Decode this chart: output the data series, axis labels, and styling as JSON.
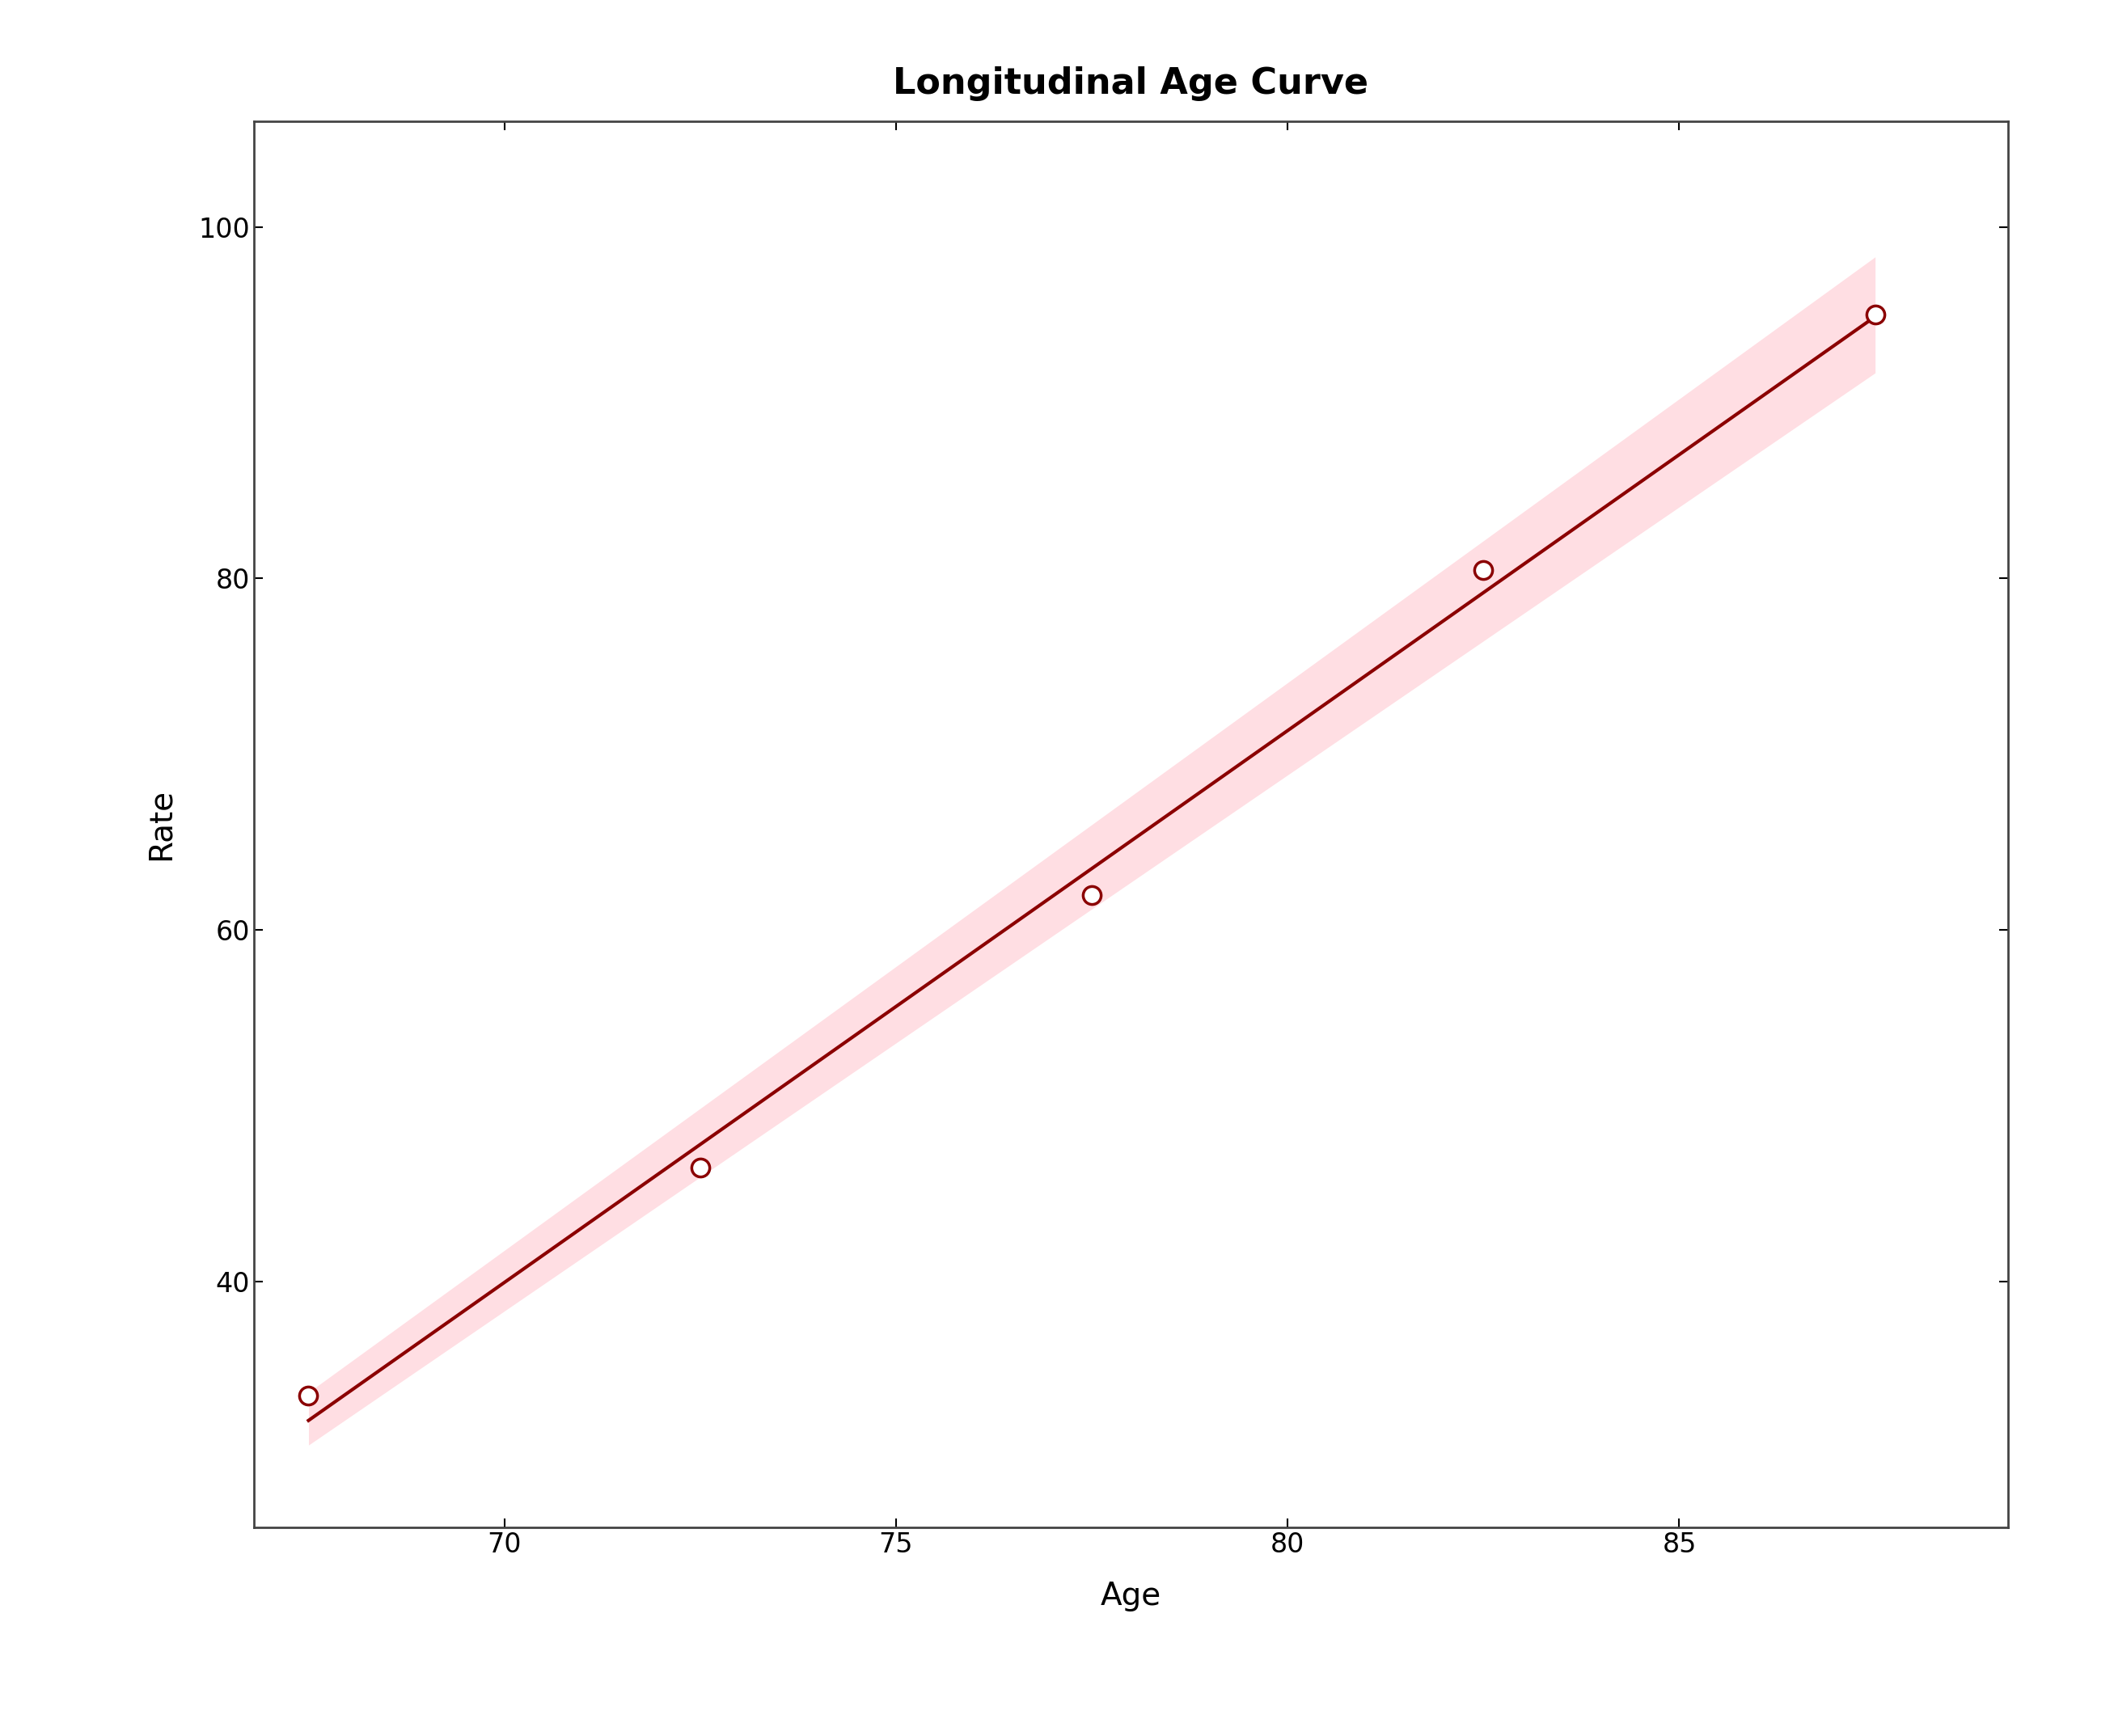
{
  "title": "Longitudinal Age Curve",
  "xlabel": "Age",
  "ylabel": "Rate",
  "age_points": [
    67.5,
    72.5,
    77.5,
    82.5,
    87.5
  ],
  "rate_points": [
    33.5,
    46.5,
    62.0,
    80.5,
    95.0
  ],
  "ci_lower": [
    32.0,
    44.5,
    60.0,
    78.0,
    91.5
  ],
  "ci_upper": [
    35.5,
    48.5,
    64.0,
    83.0,
    99.0
  ],
  "line_color": "#8B0000",
  "ci_color": "#FFB6C1",
  "marker_face_color": "white",
  "marker_edge_color": "#8B0000",
  "xlim": [
    66.8,
    89.2
  ],
  "ylim": [
    26,
    106
  ],
  "xticks": [
    70,
    75,
    80,
    85
  ],
  "yticks": [
    40,
    60,
    80,
    100
  ],
  "title_fontsize": 32,
  "axis_label_fontsize": 28,
  "tick_fontsize": 24,
  "line_width": 3.0,
  "marker_size": 16,
  "marker_linewidth": 2.5,
  "ci_alpha": 0.45,
  "background_color": "#ffffff",
  "spine_color": "#444444",
  "spine_linewidth": 2.0
}
